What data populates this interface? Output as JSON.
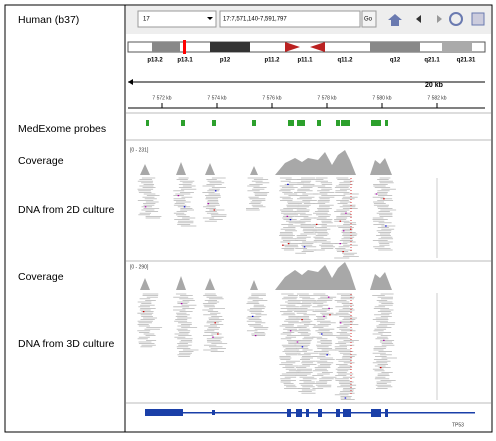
{
  "header": {
    "genome": "Human (b37)",
    "chromosome": "17",
    "locus": "17:7,571,140-7,591,797",
    "go_button": "Go"
  },
  "ideogram": {
    "bands": [
      "p13.2",
      "p13.1",
      "p12",
      "p11.2",
      "p11.1",
      "q11.2",
      "q12",
      "q21.1",
      "q21.31"
    ]
  },
  "ruler": {
    "span": "20 kb",
    "ticks": [
      "7 572 kb",
      "7 574 kb",
      "7 576 kb",
      "7 578 kb",
      "7 580 kb",
      "7 582 kb"
    ]
  },
  "tracks": [
    {
      "name": "MedExome probes"
    },
    {
      "name": "Coverage",
      "range": "[0 - 231]"
    },
    {
      "name": "DNA from 2D culture"
    },
    {
      "name": "Coverage",
      "range": "[0 - 290]"
    },
    {
      "name": "DNA from 3D culture"
    }
  ],
  "gene": {
    "name": "TP53"
  }
}
